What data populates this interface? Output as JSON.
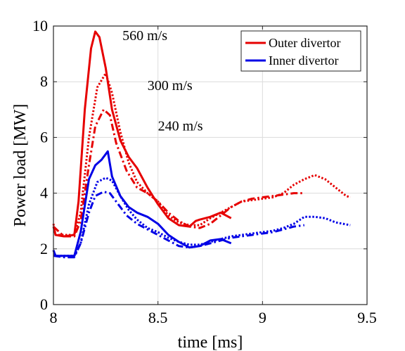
{
  "chart_data": {
    "type": "line",
    "xlabel": "time [ms]",
    "ylabel": "Power load [MW]",
    "xlim": [
      8,
      9.5
    ],
    "ylim": [
      0,
      10
    ],
    "x_ticks": [
      "8",
      "8.5",
      "9",
      "9.5"
    ],
    "y_ticks": [
      "0",
      "2",
      "4",
      "6",
      "8",
      "10"
    ],
    "grid": true,
    "legend_position": "top-right",
    "legend": [
      {
        "label": "Outer divertor",
        "color": "#e60000"
      },
      {
        "label": "Inner divertor",
        "color": "#0000e6"
      }
    ],
    "annotations": [
      {
        "text": "560 m/s",
        "x": 8.33,
        "y": 9.5
      },
      {
        "text": "300 m/s",
        "x": 8.45,
        "y": 7.7
      },
      {
        "text": "240 m/s",
        "x": 8.5,
        "y": 6.25
      }
    ],
    "series": [
      {
        "color": "#e60000",
        "dash": "solid",
        "x": [
          8.0,
          8.01,
          8.05,
          8.1,
          8.12,
          8.15,
          8.18,
          8.2,
          8.22,
          8.25,
          8.28,
          8.32,
          8.36,
          8.4,
          8.45,
          8.5,
          8.55,
          8.6,
          8.65,
          8.68,
          8.7,
          8.75,
          8.8,
          8.85
        ],
        "y": [
          2.8,
          2.5,
          2.45,
          2.5,
          3.7,
          7.0,
          9.2,
          9.8,
          9.6,
          8.5,
          7.0,
          5.9,
          5.3,
          4.9,
          4.2,
          3.6,
          3.1,
          2.85,
          2.8,
          3.0,
          3.05,
          3.15,
          3.3,
          3.1
        ]
      },
      {
        "color": "#e60000",
        "dash": "dotted",
        "x": [
          8.0,
          8.01,
          8.05,
          8.1,
          8.13,
          8.17,
          8.21,
          8.25,
          8.28,
          8.32,
          8.36,
          8.4,
          8.45,
          8.5,
          8.55,
          8.6,
          8.65,
          8.7,
          8.75,
          8.8,
          8.85,
          8.9,
          8.95,
          9.0,
          9.05,
          9.1,
          9.15,
          9.2,
          9.25,
          9.3,
          9.35,
          9.4,
          9.42
        ],
        "y": [
          2.9,
          2.5,
          2.5,
          2.5,
          3.3,
          6.0,
          7.8,
          8.3,
          7.6,
          6.2,
          5.1,
          4.4,
          4.0,
          3.7,
          3.2,
          2.95,
          2.85,
          2.85,
          3.1,
          3.3,
          3.5,
          3.7,
          3.75,
          3.8,
          3.85,
          4.0,
          4.3,
          4.5,
          4.65,
          4.5,
          4.2,
          3.9,
          3.85
        ]
      },
      {
        "color": "#e60000",
        "dash": "dashdot",
        "x": [
          8.0,
          8.05,
          8.1,
          8.13,
          8.17,
          8.2,
          8.24,
          8.27,
          8.3,
          8.35,
          8.4,
          8.45,
          8.5,
          8.55,
          8.6,
          8.65,
          8.7,
          8.75,
          8.8,
          8.85,
          8.9,
          8.95,
          9.0,
          9.05,
          9.1,
          9.15,
          9.2
        ],
        "y": [
          2.8,
          2.45,
          2.45,
          3.0,
          5.0,
          6.4,
          7.0,
          6.8,
          5.8,
          4.8,
          4.2,
          4.0,
          3.7,
          3.3,
          3.0,
          2.8,
          2.75,
          2.9,
          3.2,
          3.5,
          3.7,
          3.8,
          3.85,
          3.9,
          3.95,
          4.0,
          4.0
        ]
      },
      {
        "color": "#0000e6",
        "dash": "solid",
        "x": [
          8.0,
          8.01,
          8.05,
          8.1,
          8.13,
          8.17,
          8.2,
          8.23,
          8.26,
          8.28,
          8.32,
          8.36,
          8.4,
          8.45,
          8.5,
          8.55,
          8.6,
          8.65,
          8.7,
          8.75,
          8.8,
          8.85
        ],
        "y": [
          1.95,
          1.75,
          1.75,
          1.75,
          2.6,
          4.5,
          5.0,
          5.2,
          5.5,
          4.6,
          3.9,
          3.5,
          3.3,
          3.15,
          2.9,
          2.5,
          2.25,
          2.05,
          2.1,
          2.3,
          2.35,
          2.2
        ]
      },
      {
        "color": "#0000e6",
        "dash": "dotted",
        "x": [
          8.0,
          8.01,
          8.05,
          8.1,
          8.13,
          8.17,
          8.21,
          8.25,
          8.28,
          8.32,
          8.36,
          8.4,
          8.45,
          8.5,
          8.55,
          8.6,
          8.65,
          8.7,
          8.75,
          8.8,
          8.85,
          8.9,
          8.95,
          9.0,
          9.05,
          9.1,
          9.15,
          9.2,
          9.25,
          9.3,
          9.35,
          9.42
        ],
        "y": [
          1.95,
          1.75,
          1.75,
          1.75,
          2.2,
          3.6,
          4.4,
          4.55,
          4.45,
          3.9,
          3.4,
          3.05,
          2.75,
          2.6,
          2.4,
          2.25,
          2.15,
          2.15,
          2.25,
          2.35,
          2.45,
          2.5,
          2.55,
          2.6,
          2.65,
          2.75,
          2.9,
          3.15,
          3.15,
          3.1,
          2.95,
          2.85
        ]
      },
      {
        "color": "#0000e6",
        "dash": "dashdot",
        "x": [
          8.0,
          8.05,
          8.1,
          8.13,
          8.17,
          8.2,
          8.24,
          8.27,
          8.3,
          8.35,
          8.4,
          8.45,
          8.5,
          8.55,
          8.6,
          8.65,
          8.7,
          8.75,
          8.8,
          8.85,
          8.9,
          8.95,
          9.0,
          9.05,
          9.1,
          9.15,
          9.2
        ],
        "y": [
          1.75,
          1.7,
          1.7,
          2.2,
          3.3,
          3.9,
          4.05,
          4.0,
          3.7,
          3.2,
          2.9,
          2.7,
          2.5,
          2.3,
          2.1,
          2.05,
          2.1,
          2.2,
          2.3,
          2.4,
          2.45,
          2.5,
          2.55,
          2.6,
          2.7,
          2.8,
          2.85
        ]
      }
    ]
  }
}
